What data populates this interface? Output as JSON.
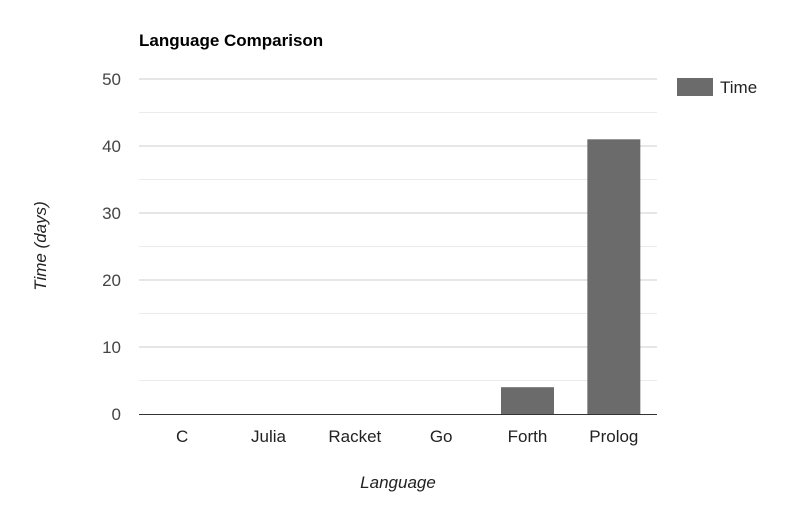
{
  "chart_data": {
    "type": "bar",
    "title": "Language Comparison",
    "xlabel": "Language",
    "ylabel": "Time (days)",
    "categories": [
      "C",
      "Julia",
      "Racket",
      "Go",
      "Forth",
      "Prolog"
    ],
    "series": [
      {
        "name": "Time",
        "color": "#6b6b6b",
        "values": [
          0,
          0,
          0,
          0,
          4,
          41
        ]
      }
    ],
    "ylim": [
      0,
      50
    ],
    "yticks": [
      0,
      10,
      20,
      30,
      40,
      50
    ],
    "grid": true,
    "minor_grid": true,
    "legend_position": "right"
  }
}
